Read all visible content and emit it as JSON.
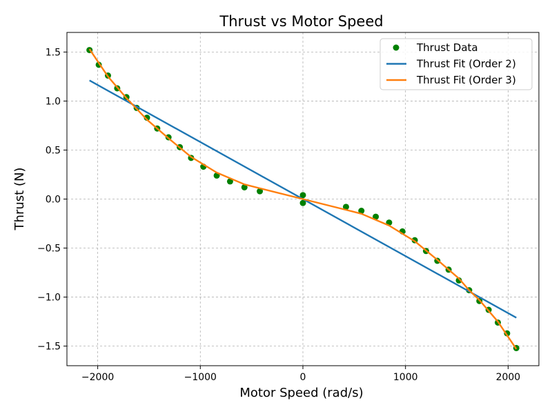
{
  "chart_data": {
    "type": "line",
    "title": "Thrust vs Motor Speed",
    "xlabel": "Motor Speed (rad/s)",
    "ylabel": "Thrust (N)",
    "xlim": [
      -2300,
      2300
    ],
    "ylim": [
      -1.7,
      1.7
    ],
    "xticks": [
      -2000,
      -1000,
      0,
      1000,
      2000
    ],
    "xtick_labels": [
      "−2000",
      "−1000",
      "0",
      "1000",
      "2000"
    ],
    "yticks": [
      -1.5,
      -1.0,
      -0.5,
      0.0,
      0.5,
      1.0,
      1.5
    ],
    "ytick_labels": [
      "−1.5",
      "−1.0",
      "−0.5",
      "0.0",
      "0.5",
      "1.0",
      "1.5"
    ],
    "grid": true,
    "legend_position": "top-right",
    "series": [
      {
        "name": "Thrust Data",
        "kind": "scatter",
        "color": "#008000",
        "x": [
          -2080,
          -1990,
          -1900,
          -1810,
          -1720,
          -1620,
          -1520,
          -1420,
          -1310,
          -1200,
          -1090,
          -970,
          -840,
          -710,
          -570,
          -420,
          0,
          0,
          420,
          570,
          710,
          840,
          970,
          1090,
          1200,
          1310,
          1420,
          1520,
          1620,
          1720,
          1810,
          1900,
          1990,
          2080
        ],
        "y": [
          1.52,
          1.37,
          1.26,
          1.13,
          1.04,
          0.93,
          0.83,
          0.72,
          0.63,
          0.53,
          0.42,
          0.33,
          0.24,
          0.18,
          0.12,
          0.08,
          0.04,
          -0.04,
          -0.08,
          -0.12,
          -0.18,
          -0.24,
          -0.33,
          -0.42,
          -0.53,
          -0.63,
          -0.72,
          -0.83,
          -0.93,
          -1.04,
          -1.13,
          -1.26,
          -1.37,
          -1.52
        ]
      },
      {
        "name": "Thrust Fit (Order 2)",
        "kind": "line",
        "color": "#1f77b4",
        "x": [
          -2080,
          2080
        ],
        "y": [
          1.21,
          -1.21
        ]
      },
      {
        "name": "Thrust Fit (Order 3)",
        "kind": "line",
        "color": "#ff7f0e",
        "x": [
          -2080,
          -1900,
          -1720,
          -1520,
          -1310,
          -1090,
          -840,
          -570,
          -420,
          0,
          420,
          570,
          840,
          1090,
          1310,
          1520,
          1620,
          1720,
          1900,
          2080
        ],
        "y": [
          1.53,
          1.25,
          1.03,
          0.81,
          0.62,
          0.43,
          0.27,
          0.15,
          0.11,
          0.0,
          -0.11,
          -0.15,
          -0.27,
          -0.43,
          -0.62,
          -0.81,
          -0.93,
          -1.03,
          -1.25,
          -1.53
        ]
      }
    ]
  }
}
